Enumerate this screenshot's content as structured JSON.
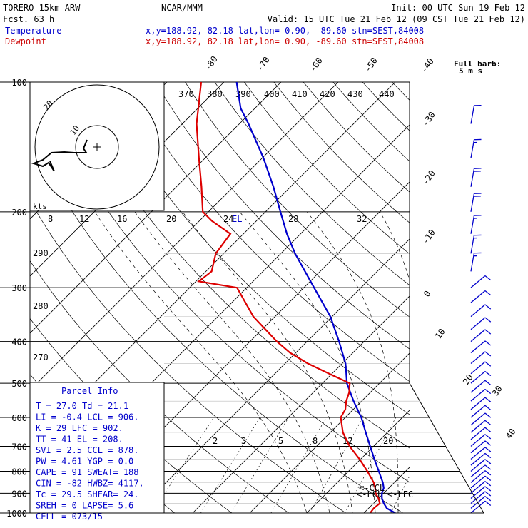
{
  "header": {
    "model": "TORERO  15km ARW",
    "fcst": "Fcst.   63 h",
    "center": "NCAR/MMM",
    "init": "Init: 00 UTC Sun 19 Feb 12",
    "valid": "Valid: 15 UTC Tue 21 Feb 12 (09 CST Tue 21 Feb 12)",
    "temp_label": "Temperature",
    "dew_label": "Dewpoint",
    "temp_loc": "x,y=188.92, 82.18   lat,lon=  0.90, -89.60   stn=SEST,84008",
    "dew_loc": "x,y=188.92, 82.18   lat,lon=  0.90, -89.60   stn=SEST,84008",
    "barb_note1": "Full barb:",
    "barb_note2": "5 m s"
  },
  "colors": {
    "temperature": "#0000cc",
    "dewpoint": "#dd0000",
    "grid": "#000000"
  },
  "pressure_labels": [
    "100",
    "200",
    "300",
    "400",
    "500",
    "600",
    "700",
    "800",
    "900",
    "1000"
  ],
  "temp_axis_labels": [
    "-80",
    "-70",
    "-60",
    "-50",
    "-40",
    "-30",
    "-20",
    "-10",
    "0",
    "10",
    "20",
    "30",
    "40"
  ],
  "theta_labels": [
    "370",
    "380",
    "390",
    "400",
    "410",
    "420",
    "430",
    "440"
  ],
  "theta_left_labels": [
    "290",
    "280",
    "270"
  ],
  "mixing_labels": [
    "2",
    "3",
    "5",
    "8",
    "12",
    "20"
  ],
  "hodo_speed_labels": [
    "8",
    "12",
    "16",
    "20",
    "24",
    "28",
    "32"
  ],
  "hodo": {
    "ring_labels": [
      "20",
      "10"
    ],
    "kts_label": "kts"
  },
  "markers": {
    "el": "EL",
    "ccl": "<-CCL",
    "lcl": "<-LCL",
    "lfc": "<-LFC"
  },
  "parcel": {
    "title": "Parcel Info",
    "rows": [
      "T   =   27.0  Td  =  21.1",
      "LI  =   -0.4  LCL =  906.",
      "K   =     29  LFC =  902.",
      "TT  =     41  EL  =  208.",
      "SVI =    2.5  CCL =  878.",
      "PW  =   4.61  YGP =   0.0",
      "CAPE =    91  SWEAT=  188",
      "CIN  =   -82  HWBZ= 4117.",
      "Tc  =   29.5  SHEAR=  24.",
      "SREH =     0  LAPSE=  5.6",
      "CELL = 073/15"
    ]
  },
  "chart_data": {
    "type": "line",
    "chart": "Skew-T log-P sounding",
    "y_axis": "pressure (hPa)",
    "ylim": [
      1000,
      100
    ],
    "x_axis": "temperature (C)",
    "series": [
      {
        "name": "Temperature",
        "pressure": [
          1000,
          975,
          950,
          925,
          900,
          875,
          850,
          800,
          750,
          700,
          650,
          600,
          550,
          500,
          475,
          450,
          400,
          350,
          300,
          250,
          225,
          200,
          175,
          150,
          125,
          115,
          100
        ],
        "temperature": [
          25.5,
          23.2,
          21.8,
          20.6,
          19.7,
          19.1,
          18.0,
          15.3,
          12.4,
          9.4,
          6.2,
          2.8,
          -1.4,
          -5.7,
          -7.5,
          -9.4,
          -14.4,
          -20.3,
          -28.2,
          -37.5,
          -42.4,
          -47.4,
          -53.0,
          -59.8,
          -68.4,
          -72.5,
          -77.8
        ]
      },
      {
        "name": "Dewpoint",
        "pressure": [
          1000,
          975,
          950,
          925,
          900,
          875,
          850,
          800,
          750,
          700,
          650,
          600,
          575,
          550,
          525,
          500,
          475,
          450,
          425,
          400,
          350,
          300,
          290,
          275,
          250,
          225,
          210,
          200,
          175,
          150,
          125,
          100
        ],
        "temperature": [
          21.1,
          20.9,
          21.1,
          20.0,
          18.6,
          17.6,
          16.4,
          13.3,
          9.8,
          5.8,
          2.2,
          -0.8,
          -1.4,
          -2.7,
          -3.7,
          -5.2,
          -10.5,
          -16.0,
          -21.0,
          -25.3,
          -33.8,
          -41.7,
          -49.5,
          -49.0,
          -51.4,
          -52.3,
          -57.8,
          -61.0,
          -65.6,
          -71.1,
          -77.5,
          -84.0
        ]
      }
    ],
    "wind_barbs": [
      {
        "p": 100,
        "spd": 0
      },
      {
        "p": 125,
        "spd": 10
      },
      {
        "p": 150,
        "spd": 15
      },
      {
        "p": 175,
        "spd": 20
      },
      {
        "p": 200,
        "spd": 20
      },
      {
        "p": 225,
        "spd": 15
      },
      {
        "p": 250,
        "spd": 15
      },
      {
        "p": 275,
        "spd": 15
      },
      {
        "p": 300,
        "spd": 10
      },
      {
        "p": 325,
        "spd": 10
      },
      {
        "p": 350,
        "spd": 10
      },
      {
        "p": 375,
        "spd": 10
      },
      {
        "p": 400,
        "spd": 10
      },
      {
        "p": 425,
        "spd": 10
      },
      {
        "p": 450,
        "spd": 10
      },
      {
        "p": 475,
        "spd": 10
      },
      {
        "p": 500,
        "spd": 10
      },
      {
        "p": 525,
        "spd": 10
      },
      {
        "p": 550,
        "spd": 10
      },
      {
        "p": 575,
        "spd": 10
      },
      {
        "p": 600,
        "spd": 10
      },
      {
        "p": 625,
        "spd": 10
      },
      {
        "p": 650,
        "spd": 10
      },
      {
        "p": 675,
        "spd": 10
      },
      {
        "p": 700,
        "spd": 10
      },
      {
        "p": 725,
        "spd": 10
      },
      {
        "p": 750,
        "spd": 10
      },
      {
        "p": 775,
        "spd": 10
      },
      {
        "p": 800,
        "spd": 10
      },
      {
        "p": 825,
        "spd": 10
      },
      {
        "p": 850,
        "spd": 10
      },
      {
        "p": 875,
        "spd": 10
      },
      {
        "p": 900,
        "spd": 10
      },
      {
        "p": 925,
        "spd": 10
      },
      {
        "p": 950,
        "spd": 10
      },
      {
        "p": 975,
        "spd": 10
      },
      {
        "p": 1000,
        "spd": 10
      }
    ]
  }
}
